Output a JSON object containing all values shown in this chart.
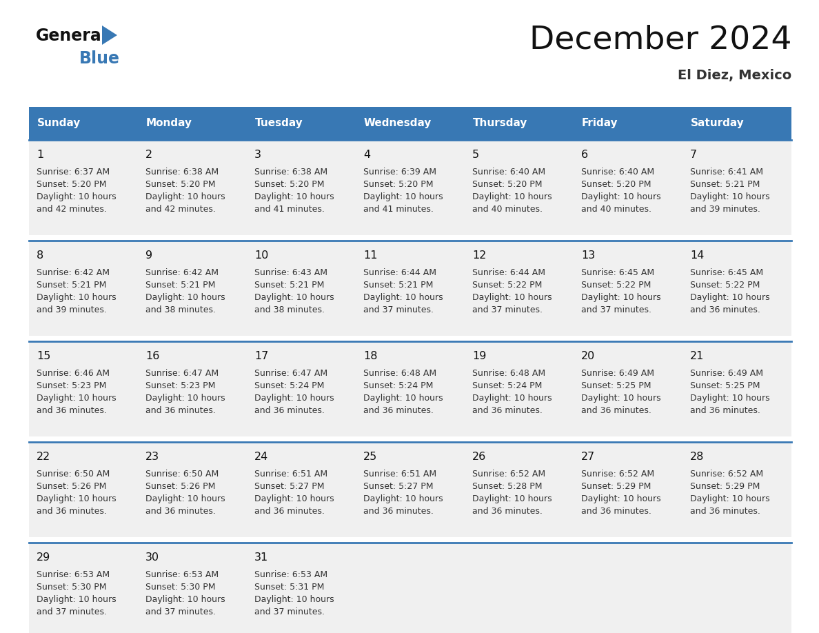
{
  "title": "December 2024",
  "subtitle": "El Diez, Mexico",
  "header_color": "#3878b4",
  "header_text_color": "#ffffff",
  "border_color": "#3878b4",
  "cell_bg": "#f0f0f0",
  "text_dark": "#111111",
  "text_body": "#333333",
  "day_headers": [
    "Sunday",
    "Monday",
    "Tuesday",
    "Wednesday",
    "Thursday",
    "Friday",
    "Saturday"
  ],
  "weeks": [
    [
      {
        "day": "1",
        "sunrise": "6:37 AM",
        "sunset": "5:20 PM",
        "dl1": "Daylight: 10 hours",
        "dl2": "and 42 minutes."
      },
      {
        "day": "2",
        "sunrise": "6:38 AM",
        "sunset": "5:20 PM",
        "dl1": "Daylight: 10 hours",
        "dl2": "and 42 minutes."
      },
      {
        "day": "3",
        "sunrise": "6:38 AM",
        "sunset": "5:20 PM",
        "dl1": "Daylight: 10 hours",
        "dl2": "and 41 minutes."
      },
      {
        "day": "4",
        "sunrise": "6:39 AM",
        "sunset": "5:20 PM",
        "dl1": "Daylight: 10 hours",
        "dl2": "and 41 minutes."
      },
      {
        "day": "5",
        "sunrise": "6:40 AM",
        "sunset": "5:20 PM",
        "dl1": "Daylight: 10 hours",
        "dl2": "and 40 minutes."
      },
      {
        "day": "6",
        "sunrise": "6:40 AM",
        "sunset": "5:20 PM",
        "dl1": "Daylight: 10 hours",
        "dl2": "and 40 minutes."
      },
      {
        "day": "7",
        "sunrise": "6:41 AM",
        "sunset": "5:21 PM",
        "dl1": "Daylight: 10 hours",
        "dl2": "and 39 minutes."
      }
    ],
    [
      {
        "day": "8",
        "sunrise": "6:42 AM",
        "sunset": "5:21 PM",
        "dl1": "Daylight: 10 hours",
        "dl2": "and 39 minutes."
      },
      {
        "day": "9",
        "sunrise": "6:42 AM",
        "sunset": "5:21 PM",
        "dl1": "Daylight: 10 hours",
        "dl2": "and 38 minutes."
      },
      {
        "day": "10",
        "sunrise": "6:43 AM",
        "sunset": "5:21 PM",
        "dl1": "Daylight: 10 hours",
        "dl2": "and 38 minutes."
      },
      {
        "day": "11",
        "sunrise": "6:44 AM",
        "sunset": "5:21 PM",
        "dl1": "Daylight: 10 hours",
        "dl2": "and 37 minutes."
      },
      {
        "day": "12",
        "sunrise": "6:44 AM",
        "sunset": "5:22 PM",
        "dl1": "Daylight: 10 hours",
        "dl2": "and 37 minutes."
      },
      {
        "day": "13",
        "sunrise": "6:45 AM",
        "sunset": "5:22 PM",
        "dl1": "Daylight: 10 hours",
        "dl2": "and 37 minutes."
      },
      {
        "day": "14",
        "sunrise": "6:45 AM",
        "sunset": "5:22 PM",
        "dl1": "Daylight: 10 hours",
        "dl2": "and 36 minutes."
      }
    ],
    [
      {
        "day": "15",
        "sunrise": "6:46 AM",
        "sunset": "5:23 PM",
        "dl1": "Daylight: 10 hours",
        "dl2": "and 36 minutes."
      },
      {
        "day": "16",
        "sunrise": "6:47 AM",
        "sunset": "5:23 PM",
        "dl1": "Daylight: 10 hours",
        "dl2": "and 36 minutes."
      },
      {
        "day": "17",
        "sunrise": "6:47 AM",
        "sunset": "5:24 PM",
        "dl1": "Daylight: 10 hours",
        "dl2": "and 36 minutes."
      },
      {
        "day": "18",
        "sunrise": "6:48 AM",
        "sunset": "5:24 PM",
        "dl1": "Daylight: 10 hours",
        "dl2": "and 36 minutes."
      },
      {
        "day": "19",
        "sunrise": "6:48 AM",
        "sunset": "5:24 PM",
        "dl1": "Daylight: 10 hours",
        "dl2": "and 36 minutes."
      },
      {
        "day": "20",
        "sunrise": "6:49 AM",
        "sunset": "5:25 PM",
        "dl1": "Daylight: 10 hours",
        "dl2": "and 36 minutes."
      },
      {
        "day": "21",
        "sunrise": "6:49 AM",
        "sunset": "5:25 PM",
        "dl1": "Daylight: 10 hours",
        "dl2": "and 36 minutes."
      }
    ],
    [
      {
        "day": "22",
        "sunrise": "6:50 AM",
        "sunset": "5:26 PM",
        "dl1": "Daylight: 10 hours",
        "dl2": "and 36 minutes."
      },
      {
        "day": "23",
        "sunrise": "6:50 AM",
        "sunset": "5:26 PM",
        "dl1": "Daylight: 10 hours",
        "dl2": "and 36 minutes."
      },
      {
        "day": "24",
        "sunrise": "6:51 AM",
        "sunset": "5:27 PM",
        "dl1": "Daylight: 10 hours",
        "dl2": "and 36 minutes."
      },
      {
        "day": "25",
        "sunrise": "6:51 AM",
        "sunset": "5:27 PM",
        "dl1": "Daylight: 10 hours",
        "dl2": "and 36 minutes."
      },
      {
        "day": "26",
        "sunrise": "6:52 AM",
        "sunset": "5:28 PM",
        "dl1": "Daylight: 10 hours",
        "dl2": "and 36 minutes."
      },
      {
        "day": "27",
        "sunrise": "6:52 AM",
        "sunset": "5:29 PM",
        "dl1": "Daylight: 10 hours",
        "dl2": "and 36 minutes."
      },
      {
        "day": "28",
        "sunrise": "6:52 AM",
        "sunset": "5:29 PM",
        "dl1": "Daylight: 10 hours",
        "dl2": "and 36 minutes."
      }
    ],
    [
      {
        "day": "29",
        "sunrise": "6:53 AM",
        "sunset": "5:30 PM",
        "dl1": "Daylight: 10 hours",
        "dl2": "and 37 minutes."
      },
      {
        "day": "30",
        "sunrise": "6:53 AM",
        "sunset": "5:30 PM",
        "dl1": "Daylight: 10 hours",
        "dl2": "and 37 minutes."
      },
      {
        "day": "31",
        "sunrise": "6:53 AM",
        "sunset": "5:31 PM",
        "dl1": "Daylight: 10 hours",
        "dl2": "and 37 minutes."
      },
      null,
      null,
      null,
      null
    ]
  ]
}
